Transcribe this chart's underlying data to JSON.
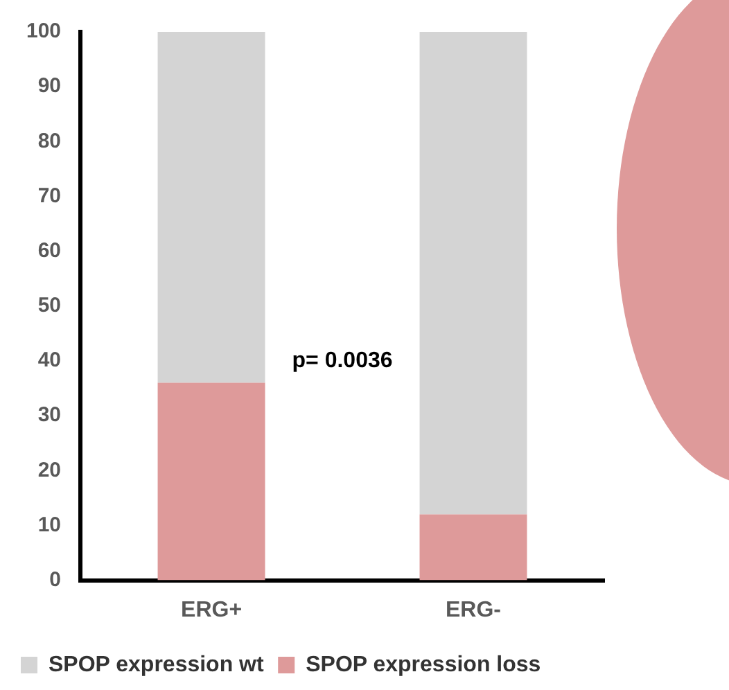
{
  "chart_data": {
    "type": "bar",
    "stacked": true,
    "categories": [
      "ERG+",
      "ERG-"
    ],
    "series": [
      {
        "name": "SPOP expression loss",
        "color": "#de9a9a",
        "values": [
          36,
          12
        ]
      },
      {
        "name": "SPOP expression wt",
        "color": "#d4d4d4",
        "values": [
          64,
          88
        ]
      }
    ],
    "ylim": [
      0,
      100
    ],
    "yticks": [
      0,
      10,
      20,
      30,
      40,
      50,
      60,
      70,
      80,
      90,
      100
    ],
    "grid": false,
    "legend": "bottom",
    "annotations": [
      "p= 0.0036"
    ]
  }
}
